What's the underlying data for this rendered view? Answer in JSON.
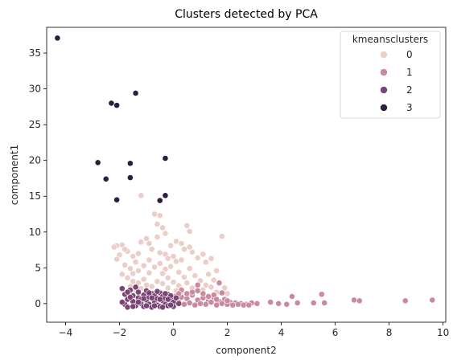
{
  "chart_data": {
    "type": "scatter",
    "title": "Clusters detected by PCA",
    "xlabel": "component2",
    "ylabel": "component1",
    "xlim": [
      -4.7,
      10.1
    ],
    "ylim": [
      -2.6,
      38.6
    ],
    "xticks": [
      -4,
      -2,
      0,
      2,
      4,
      6,
      8,
      10
    ],
    "yticks": [
      0,
      5,
      10,
      15,
      20,
      25,
      30,
      35
    ],
    "grid": false,
    "legend": {
      "title": "kmeansclusters",
      "placement": "top-right",
      "entries": [
        "0",
        "1",
        "2",
        "3"
      ]
    },
    "series": [
      {
        "name": "0",
        "color": "#ebcec7",
        "points": [
          [
            -2.1,
            8.1
          ],
          [
            -1.9,
            8.2
          ],
          [
            -1.7,
            7.3
          ],
          [
            -2.0,
            6.8
          ],
          [
            -2.1,
            6.2
          ],
          [
            -1.8,
            5.4
          ],
          [
            -1.6,
            4.9
          ],
          [
            -1.5,
            6.6
          ],
          [
            -1.3,
            7.0
          ],
          [
            -1.4,
            5.8
          ],
          [
            -1.2,
            8.6
          ],
          [
            -1.0,
            9.1
          ],
          [
            -0.9,
            8.4
          ],
          [
            -0.7,
            12.5
          ],
          [
            -0.6,
            11.1
          ],
          [
            -0.5,
            12.3
          ],
          [
            -0.4,
            10.6
          ],
          [
            -0.3,
            9.8
          ],
          [
            -0.6,
            9.3
          ],
          [
            -0.8,
            7.6
          ],
          [
            -0.5,
            7.1
          ],
          [
            -0.3,
            6.9
          ],
          [
            -0.1,
            8.1
          ],
          [
            0.1,
            8.7
          ],
          [
            0.3,
            8.4
          ],
          [
            0.5,
            10.9
          ],
          [
            0.6,
            10.1
          ],
          [
            0.4,
            7.6
          ],
          [
            0.7,
            7.2
          ],
          [
            0.9,
            6.4
          ],
          [
            1.1,
            6.9
          ],
          [
            1.2,
            5.8
          ],
          [
            1.4,
            6.3
          ],
          [
            1.6,
            4.6
          ],
          [
            1.8,
            9.4
          ],
          [
            1.3,
            4.1
          ],
          [
            1.5,
            3.3
          ],
          [
            1.7,
            2.8
          ],
          [
            1.9,
            2.2
          ],
          [
            -1.2,
            15.1
          ],
          [
            -1.9,
            4.1
          ],
          [
            -1.7,
            3.6
          ],
          [
            -1.5,
            3.1
          ],
          [
            -1.3,
            2.9
          ],
          [
            -1.1,
            3.4
          ],
          [
            -0.9,
            4.3
          ],
          [
            -0.7,
            5.1
          ],
          [
            -0.5,
            5.6
          ],
          [
            -0.3,
            4.8
          ],
          [
            -0.1,
            5.2
          ],
          [
            0.1,
            5.9
          ],
          [
            0.2,
            4.4
          ],
          [
            0.4,
            3.7
          ],
          [
            0.6,
            4.9
          ],
          [
            0.8,
            3.9
          ],
          [
            1.0,
            3.2
          ],
          [
            1.2,
            2.6
          ],
          [
            1.4,
            2.3
          ],
          [
            -1.0,
            2.6
          ],
          [
            -0.8,
            2.4
          ],
          [
            -0.6,
            3.1
          ],
          [
            -0.4,
            2.8
          ],
          [
            -0.2,
            3.6
          ],
          [
            0.0,
            3.0
          ],
          [
            0.2,
            2.5
          ],
          [
            0.5,
            2.9
          ],
          [
            0.7,
            2.2
          ],
          [
            0.9,
            2.4
          ],
          [
            1.1,
            1.9
          ],
          [
            -1.6,
            2.4
          ],
          [
            -1.4,
            1.9
          ],
          [
            -1.2,
            2.1
          ],
          [
            -0.2,
            6.3
          ],
          [
            0.0,
            6.6
          ],
          [
            0.3,
            6.1
          ],
          [
            0.6,
            7.9
          ],
          [
            -0.9,
            6.1
          ],
          [
            -1.1,
            5.3
          ],
          [
            -1.3,
            4.6
          ],
          [
            -1.5,
            4.2
          ],
          [
            -0.4,
            4.2
          ],
          [
            -0.2,
            2.2
          ],
          [
            0.1,
            1.8
          ],
          [
            0.3,
            1.6
          ],
          [
            1.6,
            1.6
          ],
          [
            2.0,
            1.4
          ],
          [
            -1.8,
            7.6
          ],
          [
            -2.2,
            7.9
          ]
        ]
      },
      {
        "name": "1",
        "color": "#c98aa0",
        "points": [
          [
            0.1,
            1.1
          ],
          [
            0.3,
            0.9
          ],
          [
            0.5,
            0.7
          ],
          [
            0.7,
            1.2
          ],
          [
            0.9,
            0.5
          ],
          [
            1.1,
            0.8
          ],
          [
            1.3,
            0.4
          ],
          [
            1.5,
            0.9
          ],
          [
            1.7,
            0.3
          ],
          [
            1.9,
            0.6
          ],
          [
            2.1,
            0.2
          ],
          [
            2.3,
            0.1
          ],
          [
            2.5,
            0.0
          ],
          [
            2.7,
            -0.1
          ],
          [
            2.9,
            0.1
          ],
          [
            3.1,
            0.0
          ],
          [
            0.2,
            0.2
          ],
          [
            0.4,
            -0.1
          ],
          [
            0.6,
            0.1
          ],
          [
            0.8,
            -0.2
          ],
          [
            1.0,
            0.0
          ],
          [
            1.2,
            -0.1
          ],
          [
            1.4,
            0.2
          ],
          [
            1.6,
            -0.2
          ],
          [
            1.8,
            0.0
          ],
          [
            2.0,
            -0.1
          ],
          [
            2.2,
            -0.2
          ],
          [
            2.4,
            -0.1
          ],
          [
            2.6,
            -0.2
          ],
          [
            2.8,
            -0.2
          ],
          [
            0.3,
            1.9
          ],
          [
            0.7,
            1.6
          ],
          [
            1.1,
            1.4
          ],
          [
            1.5,
            1.2
          ],
          [
            1.8,
            1.5
          ],
          [
            0.9,
            1.8
          ],
          [
            0.5,
            1.4
          ],
          [
            1.3,
            1.0
          ],
          [
            1.6,
            0.6
          ],
          [
            2.0,
            0.4
          ],
          [
            3.6,
            0.2
          ],
          [
            3.9,
            0.0
          ],
          [
            4.2,
            -0.1
          ],
          [
            4.4,
            1.0
          ],
          [
            4.6,
            0.1
          ],
          [
            5.2,
            0.1
          ],
          [
            5.5,
            1.3
          ],
          [
            5.6,
            0.1
          ],
          [
            6.7,
            0.5
          ],
          [
            6.9,
            0.4
          ],
          [
            8.6,
            0.4
          ],
          [
            9.6,
            0.5
          ],
          [
            1.7,
            2.9
          ],
          [
            0.9,
            2.6
          ],
          [
            0.0,
            0.6
          ],
          [
            0.2,
            1.4
          ]
        ]
      },
      {
        "name": "2",
        "color": "#7b4476",
        "points": [
          [
            -1.9,
            2.1
          ],
          [
            -1.8,
            1.3
          ],
          [
            -1.7,
            0.6
          ],
          [
            -1.8,
            -0.1
          ],
          [
            -1.7,
            -0.5
          ],
          [
            -1.6,
            1.9
          ],
          [
            -1.5,
            1.1
          ],
          [
            -1.5,
            0.3
          ],
          [
            -1.4,
            -0.3
          ],
          [
            -1.3,
            1.6
          ],
          [
            -1.3,
            0.8
          ],
          [
            -1.2,
            0.0
          ],
          [
            -1.1,
            1.2
          ],
          [
            -1.1,
            -0.4
          ],
          [
            -1.0,
            0.5
          ],
          [
            -1.0,
            1.8
          ],
          [
            -0.9,
            -0.1
          ],
          [
            -0.9,
            0.9
          ],
          [
            -0.8,
            1.4
          ],
          [
            -0.8,
            -0.5
          ],
          [
            -0.7,
            0.3
          ],
          [
            -0.7,
            1.1
          ],
          [
            -0.6,
            -0.2
          ],
          [
            -0.6,
            0.7
          ],
          [
            -0.5,
            1.5
          ],
          [
            -0.5,
            -0.4
          ],
          [
            -0.4,
            0.4
          ],
          [
            -0.4,
            1.0
          ],
          [
            -0.3,
            -0.1
          ],
          [
            -0.3,
            0.8
          ],
          [
            -0.2,
            1.3
          ],
          [
            -0.2,
            -0.3
          ],
          [
            -0.1,
            0.5
          ],
          [
            -0.1,
            1.1
          ],
          [
            0.0,
            0.2
          ],
          [
            0.0,
            -0.4
          ],
          [
            -1.6,
            0.9
          ],
          [
            -1.4,
            2.3
          ],
          [
            -1.2,
            0.6
          ],
          [
            -1.0,
            -0.3
          ],
          [
            -0.8,
            0.8
          ],
          [
            -0.6,
            1.7
          ],
          [
            -0.4,
            -0.5
          ],
          [
            -0.2,
            0.6
          ],
          [
            -1.7,
            1.6
          ],
          [
            -1.5,
            -0.4
          ],
          [
            -1.3,
            0.2
          ],
          [
            -1.1,
            0.7
          ],
          [
            -0.9,
            1.5
          ],
          [
            -0.7,
            -0.3
          ],
          [
            -0.5,
            0.6
          ],
          [
            -0.3,
            1.4
          ],
          [
            -0.1,
            -0.2
          ],
          [
            0.1,
            0.8
          ],
          [
            0.2,
            0.0
          ],
          [
            -1.9,
            0.2
          ]
        ]
      },
      {
        "name": "3",
        "color": "#2d1e3e",
        "points": [
          [
            -4.3,
            37.1
          ],
          [
            -2.3,
            28.0
          ],
          [
            -2.1,
            27.7
          ],
          [
            -1.4,
            29.4
          ],
          [
            -2.8,
            19.7
          ],
          [
            -1.6,
            19.6
          ],
          [
            -0.3,
            20.3
          ],
          [
            -2.5,
            17.4
          ],
          [
            -1.6,
            17.6
          ],
          [
            -2.1,
            14.5
          ],
          [
            -0.5,
            14.4
          ],
          [
            -0.3,
            15.1
          ]
        ]
      }
    ]
  }
}
